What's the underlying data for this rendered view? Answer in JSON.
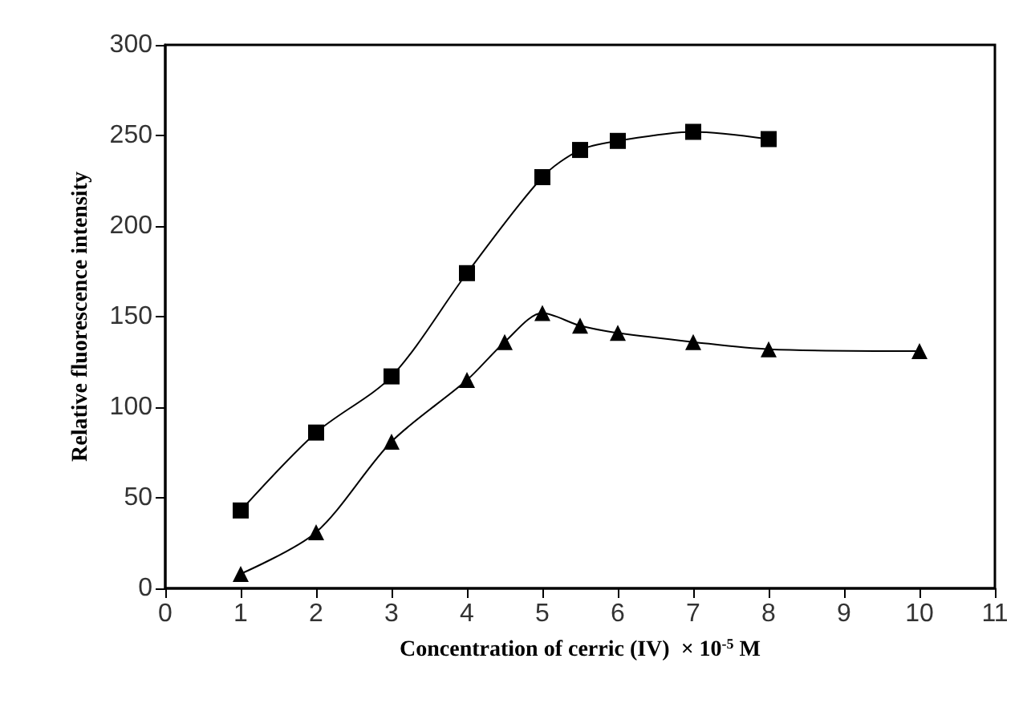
{
  "chart_data": {
    "type": "line",
    "xlabel": "Concentration of cerric (IV)  × 10$^{-5}$ M",
    "ylabel": "Relative fluorescence intensity",
    "xlim": [
      0,
      11
    ],
    "xticks": [
      0,
      1,
      2,
      3,
      4,
      5,
      6,
      7,
      8,
      9,
      10,
      11
    ],
    "ylim": [
      0,
      300
    ],
    "yticks": [
      0,
      50,
      100,
      150,
      200,
      250,
      300
    ],
    "grid": false,
    "series": [
      {
        "color": "#000000",
        "marker": "square",
        "x": [
          1,
          2,
          3,
          4,
          5,
          5.5,
          6,
          7,
          8
        ],
        "values": [
          43,
          86,
          117,
          174,
          227,
          242,
          247,
          252,
          248
        ]
      },
      {
        "color": "#000000",
        "marker": "triangle",
        "x": [
          1,
          2,
          3,
          4,
          4.5,
          5,
          5.5,
          6,
          7,
          8,
          10
        ],
        "values": [
          8,
          31,
          81,
          115,
          136,
          152,
          145,
          141,
          136,
          132,
          131
        ]
      }
    ]
  }
}
